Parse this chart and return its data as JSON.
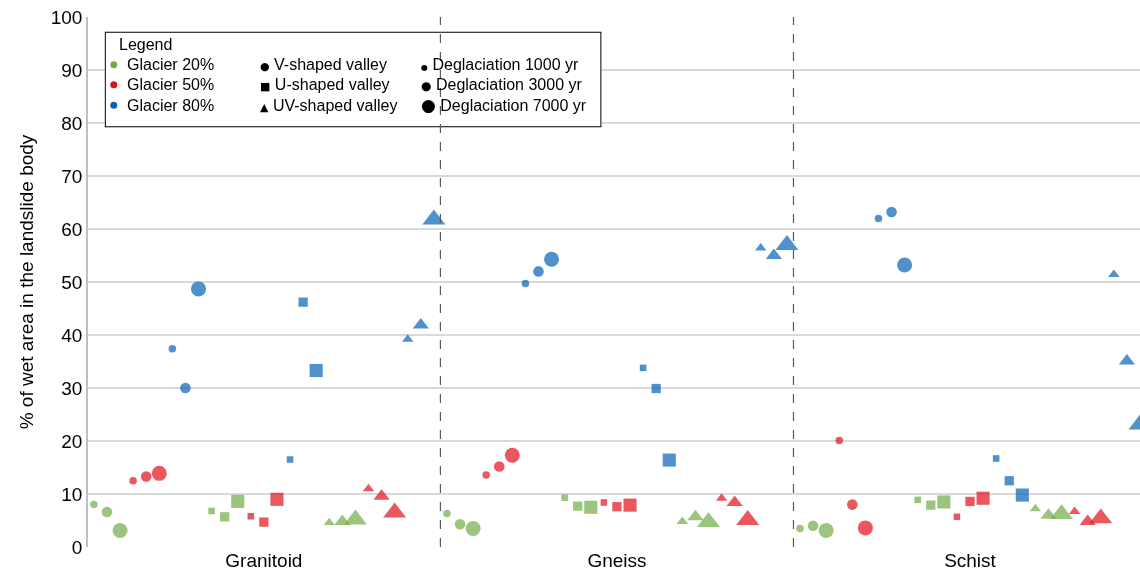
{
  "chart_data": {
    "type": "scatter",
    "ylabel": "% of wet area in the landslide body",
    "categories": [
      null,
      null,
      null,
      null,
      null,
      null,
      null,
      null,
      null,
      null,
      null,
      null,
      null,
      "Granitoid",
      null,
      null,
      null,
      null,
      null,
      null,
      null,
      null,
      null,
      null,
      null,
      null,
      null,
      null,
      null,
      null,
      null,
      null,
      null,
      null,
      null,
      null,
      null,
      null,
      null,
      null,
      "Gneiss",
      null,
      null,
      null,
      null,
      null,
      null,
      null,
      null,
      null,
      null,
      null,
      null,
      null,
      null,
      null,
      null,
      null,
      null,
      null,
      null,
      null,
      null,
      null,
      null,
      null,
      null,
      "Schist",
      null,
      null,
      null,
      null,
      null,
      null,
      null,
      null,
      null,
      null,
      null,
      null,
      null
    ],
    "ylim": [
      0,
      100
    ],
    "yticks": [
      0,
      10,
      20,
      30,
      40,
      50,
      60,
      70,
      80,
      90,
      100
    ],
    "grid": "y",
    "legend": "top left",
    "legend_title": "Legend",
    "annotations": [
      "● V-shaped valley",
      "■ U-shaped valley",
      "▲ UV-shaped valley",
      "● Deglaciation 1000 yr",
      "● Deglaciation 3000 yr",
      "● Deglaciation 7000 yr"
    ],
    "series": [
      {
        "name": "Glacier 20%",
        "color": "#70ad47",
        "values": [
          8.0,
          6.6,
          3.1,
          null,
          null,
          null,
          null,
          null,
          null,
          6.8,
          5.7,
          8.6,
          null,
          null,
          null,
          null,
          null,
          null,
          4.6,
          4.8,
          5.2,
          null,
          null,
          null,
          null,
          null,
          null,
          6.3,
          4.3,
          3.5,
          null,
          null,
          null,
          null,
          null,
          null,
          9.3,
          7.7,
          7.5,
          null,
          null,
          null,
          null,
          null,
          null,
          4.8,
          5.7,
          4.7,
          null,
          null,
          null,
          null,
          null,
          null,
          3.5,
          4.0,
          3.1,
          null,
          null,
          null,
          null,
          null,
          null,
          8.9,
          7.9,
          8.5,
          null,
          null,
          null,
          null,
          null,
          null,
          7.2,
          6.0,
          6.2,
          null,
          null,
          null,
          null,
          null,
          null
        ],
        "sizes": [
          0.25,
          0.5,
          1,
          null,
          null,
          null,
          null,
          null,
          null,
          0.25,
          0.5,
          1,
          null,
          null,
          null,
          null,
          null,
          null,
          0.25,
          0.5,
          1,
          null,
          null,
          null,
          null,
          null,
          null,
          0.25,
          0.5,
          1,
          null,
          null,
          null,
          null,
          null,
          null,
          0.25,
          0.5,
          1,
          null,
          null,
          null,
          null,
          null,
          null,
          0.25,
          0.5,
          1,
          null,
          null,
          null,
          null,
          null,
          null,
          0.25,
          0.5,
          1,
          null,
          null,
          null,
          null,
          null,
          null,
          0.25,
          0.5,
          1,
          null,
          null,
          null,
          null,
          null,
          null,
          0.25,
          0.5,
          1,
          null,
          null,
          null,
          null,
          null,
          null
        ],
        "marker": [
          "circle",
          "circle",
          "circle",
          null,
          null,
          null,
          null,
          null,
          null,
          "square",
          "square",
          "square",
          null,
          null,
          null,
          null,
          null,
          null,
          "triangle",
          "triangle",
          "triangle",
          null,
          null,
          null,
          null,
          null,
          null,
          "circle",
          "circle",
          "circle",
          null,
          null,
          null,
          null,
          null,
          null,
          "square",
          "square",
          "square",
          null,
          null,
          null,
          null,
          null,
          null,
          "triangle",
          "triangle",
          "triangle",
          null,
          null,
          null,
          null,
          null,
          null,
          "circle",
          "circle",
          "circle",
          null,
          null,
          null,
          null,
          null,
          null,
          "square",
          "square",
          "square",
          null,
          null,
          null,
          null,
          null,
          null,
          "triangle",
          "triangle",
          "triangle",
          null,
          null,
          null,
          null,
          null,
          null
        ]
      },
      {
        "name": "Glacier 50%",
        "color": "#e3101a",
        "values": [
          null,
          null,
          null,
          12.5,
          13.3,
          13.9,
          null,
          null,
          null,
          null,
          null,
          null,
          5.8,
          4.7,
          9.0,
          null,
          null,
          null,
          null,
          null,
          null,
          11.0,
          9.6,
          6.5,
          null,
          null,
          null,
          null,
          null,
          null,
          13.6,
          15.2,
          17.3,
          null,
          null,
          null,
          null,
          null,
          null,
          8.4,
          7.6,
          7.9,
          null,
          null,
          null,
          null,
          null,
          null,
          9.2,
          8.4,
          5.1,
          null,
          null,
          null,
          null,
          null,
          null,
          20.1,
          8.0,
          3.6,
          null,
          null,
          null,
          null,
          null,
          null,
          5.7,
          8.6,
          9.2,
          null,
          null,
          null,
          null,
          null,
          null,
          6.7,
          4.8,
          5.4,
          null,
          null,
          null
        ],
        "sizes": [
          null,
          null,
          null,
          0.25,
          0.5,
          1,
          null,
          null,
          null,
          null,
          null,
          null,
          0.25,
          0.5,
          1,
          null,
          null,
          null,
          null,
          null,
          null,
          0.25,
          0.5,
          1,
          null,
          null,
          null,
          null,
          null,
          null,
          0.25,
          0.5,
          1,
          null,
          null,
          null,
          null,
          null,
          null,
          0.25,
          0.5,
          1,
          null,
          null,
          null,
          null,
          null,
          null,
          0.25,
          0.5,
          1,
          null,
          null,
          null,
          null,
          null,
          null,
          0.25,
          0.5,
          1,
          null,
          null,
          null,
          null,
          null,
          null,
          0.25,
          0.5,
          1,
          null,
          null,
          null,
          null,
          null,
          null,
          0.25,
          0.5,
          1,
          null,
          null,
          null
        ],
        "marker": [
          null,
          null,
          null,
          "circle",
          "circle",
          "circle",
          null,
          null,
          null,
          null,
          null,
          null,
          "square",
          "square",
          "square",
          null,
          null,
          null,
          null,
          null,
          null,
          "triangle",
          "triangle",
          "triangle",
          null,
          null,
          null,
          null,
          null,
          null,
          "circle",
          "circle",
          "circle",
          null,
          null,
          null,
          null,
          null,
          null,
          "square",
          "square",
          "square",
          null,
          null,
          null,
          null,
          null,
          null,
          "triangle",
          "triangle",
          "triangle",
          null,
          null,
          null,
          null,
          null,
          null,
          "circle",
          "circle",
          "circle",
          null,
          null,
          null,
          null,
          null,
          null,
          "square",
          "square",
          "square",
          null,
          null,
          null,
          null,
          null,
          null,
          "triangle",
          "triangle",
          "triangle",
          null,
          null,
          null
        ]
      },
      {
        "name": "Glacier 80%",
        "color": "#0563b5",
        "values": [
          null,
          null,
          null,
          null,
          null,
          null,
          37.4,
          30.0,
          48.7,
          null,
          null,
          null,
          null,
          null,
          null,
          16.5,
          46.2,
          33.3,
          null,
          null,
          null,
          null,
          null,
          null,
          39.2,
          41.9,
          61.8,
          null,
          null,
          null,
          null,
          null,
          null,
          49.7,
          52.0,
          54.3,
          null,
          null,
          null,
          null,
          null,
          null,
          33.8,
          29.9,
          16.4,
          null,
          null,
          null,
          null,
          null,
          null,
          56.4,
          55.0,
          57.0,
          null,
          null,
          null,
          null,
          null,
          null,
          62.0,
          63.2,
          53.2,
          null,
          null,
          null,
          null,
          null,
          null,
          16.7,
          12.5,
          9.8,
          null,
          null,
          null,
          null,
          null,
          null,
          51.4,
          35.1,
          23.1
        ],
        "sizes": [
          null,
          null,
          null,
          null,
          null,
          null,
          0.25,
          0.5,
          1,
          null,
          null,
          null,
          null,
          null,
          null,
          0.25,
          0.5,
          1,
          null,
          null,
          null,
          null,
          null,
          null,
          0.25,
          0.5,
          1,
          null,
          null,
          null,
          null,
          null,
          null,
          0.25,
          0.5,
          1,
          null,
          null,
          null,
          null,
          null,
          null,
          0.25,
          0.5,
          1,
          null,
          null,
          null,
          null,
          null,
          null,
          0.25,
          0.5,
          1,
          null,
          null,
          null,
          null,
          null,
          null,
          0.25,
          0.5,
          1,
          null,
          null,
          null,
          null,
          null,
          null,
          0.25,
          0.5,
          1,
          null,
          null,
          null,
          null,
          null,
          null,
          0.25,
          0.5,
          1
        ],
        "marker": [
          null,
          null,
          null,
          null,
          null,
          null,
          "circle",
          "circle",
          "circle",
          null,
          null,
          null,
          null,
          null,
          null,
          "square",
          "square",
          "square",
          null,
          null,
          null,
          null,
          null,
          null,
          "triangle",
          "triangle",
          "triangle",
          null,
          null,
          null,
          null,
          null,
          null,
          "circle",
          "circle",
          "circle",
          null,
          null,
          null,
          null,
          null,
          null,
          "square",
          "square",
          "square",
          null,
          null,
          null,
          null,
          null,
          null,
          "triangle",
          "triangle",
          "triangle",
          null,
          null,
          null,
          null,
          null,
          null,
          "circle",
          "circle",
          "circle",
          null,
          null,
          null,
          null,
          null,
          null,
          "square",
          "square",
          "square",
          null,
          null,
          null,
          null,
          null,
          null,
          "triangle",
          "triangle",
          "triangle"
        ]
      }
    ]
  }
}
